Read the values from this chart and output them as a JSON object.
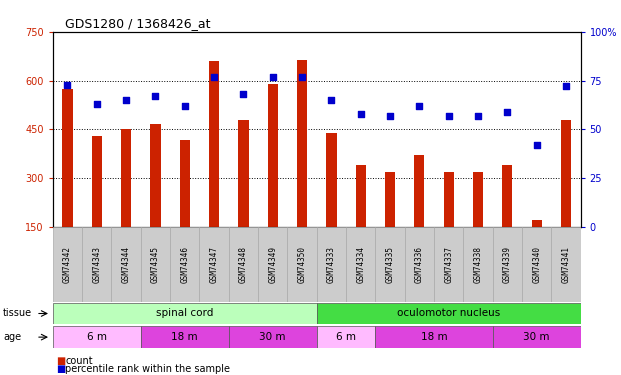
{
  "title": "GDS1280 / 1368426_at",
  "samples": [
    "GSM74342",
    "GSM74343",
    "GSM74344",
    "GSM74345",
    "GSM74346",
    "GSM74347",
    "GSM74348",
    "GSM74349",
    "GSM74350",
    "GSM74333",
    "GSM74334",
    "GSM74335",
    "GSM74336",
    "GSM74337",
    "GSM74338",
    "GSM74339",
    "GSM74340",
    "GSM74341"
  ],
  "counts": [
    575,
    430,
    450,
    468,
    418,
    660,
    478,
    590,
    665,
    440,
    340,
    320,
    370,
    320,
    320,
    340,
    170,
    478
  ],
  "percentiles": [
    73,
    63,
    65,
    67,
    62,
    77,
    68,
    77,
    77,
    65,
    58,
    57,
    62,
    57,
    57,
    59,
    42,
    72
  ],
  "ylim_left": [
    150,
    750
  ],
  "ylim_right": [
    0,
    100
  ],
  "yticks_left": [
    150,
    300,
    450,
    600,
    750
  ],
  "yticks_right": [
    0,
    25,
    50,
    75,
    100
  ],
  "bar_color": "#cc2200",
  "dot_color": "#0000cc",
  "tissue_groups": [
    {
      "label": "spinal cord",
      "start": 0,
      "end": 9,
      "color": "#bbffbb"
    },
    {
      "label": "oculomotor nucleus",
      "start": 9,
      "end": 18,
      "color": "#44dd44"
    }
  ],
  "age_groups": [
    {
      "label": "6 m",
      "start": 0,
      "end": 3,
      "color": "#ffbbff"
    },
    {
      "label": "18 m",
      "start": 3,
      "end": 6,
      "color": "#dd44dd"
    },
    {
      "label": "30 m",
      "start": 6,
      "end": 9,
      "color": "#dd44dd"
    },
    {
      "label": "6 m",
      "start": 9,
      "end": 11,
      "color": "#ffbbff"
    },
    {
      "label": "18 m",
      "start": 11,
      "end": 15,
      "color": "#dd44dd"
    },
    {
      "label": "30 m",
      "start": 15,
      "end": 18,
      "color": "#dd44dd"
    }
  ],
  "plot_bg": "#ffffff",
  "legend_items": [
    {
      "label": "count",
      "color": "#cc2200"
    },
    {
      "label": "percentile rank within the sample",
      "color": "#0000cc"
    }
  ]
}
